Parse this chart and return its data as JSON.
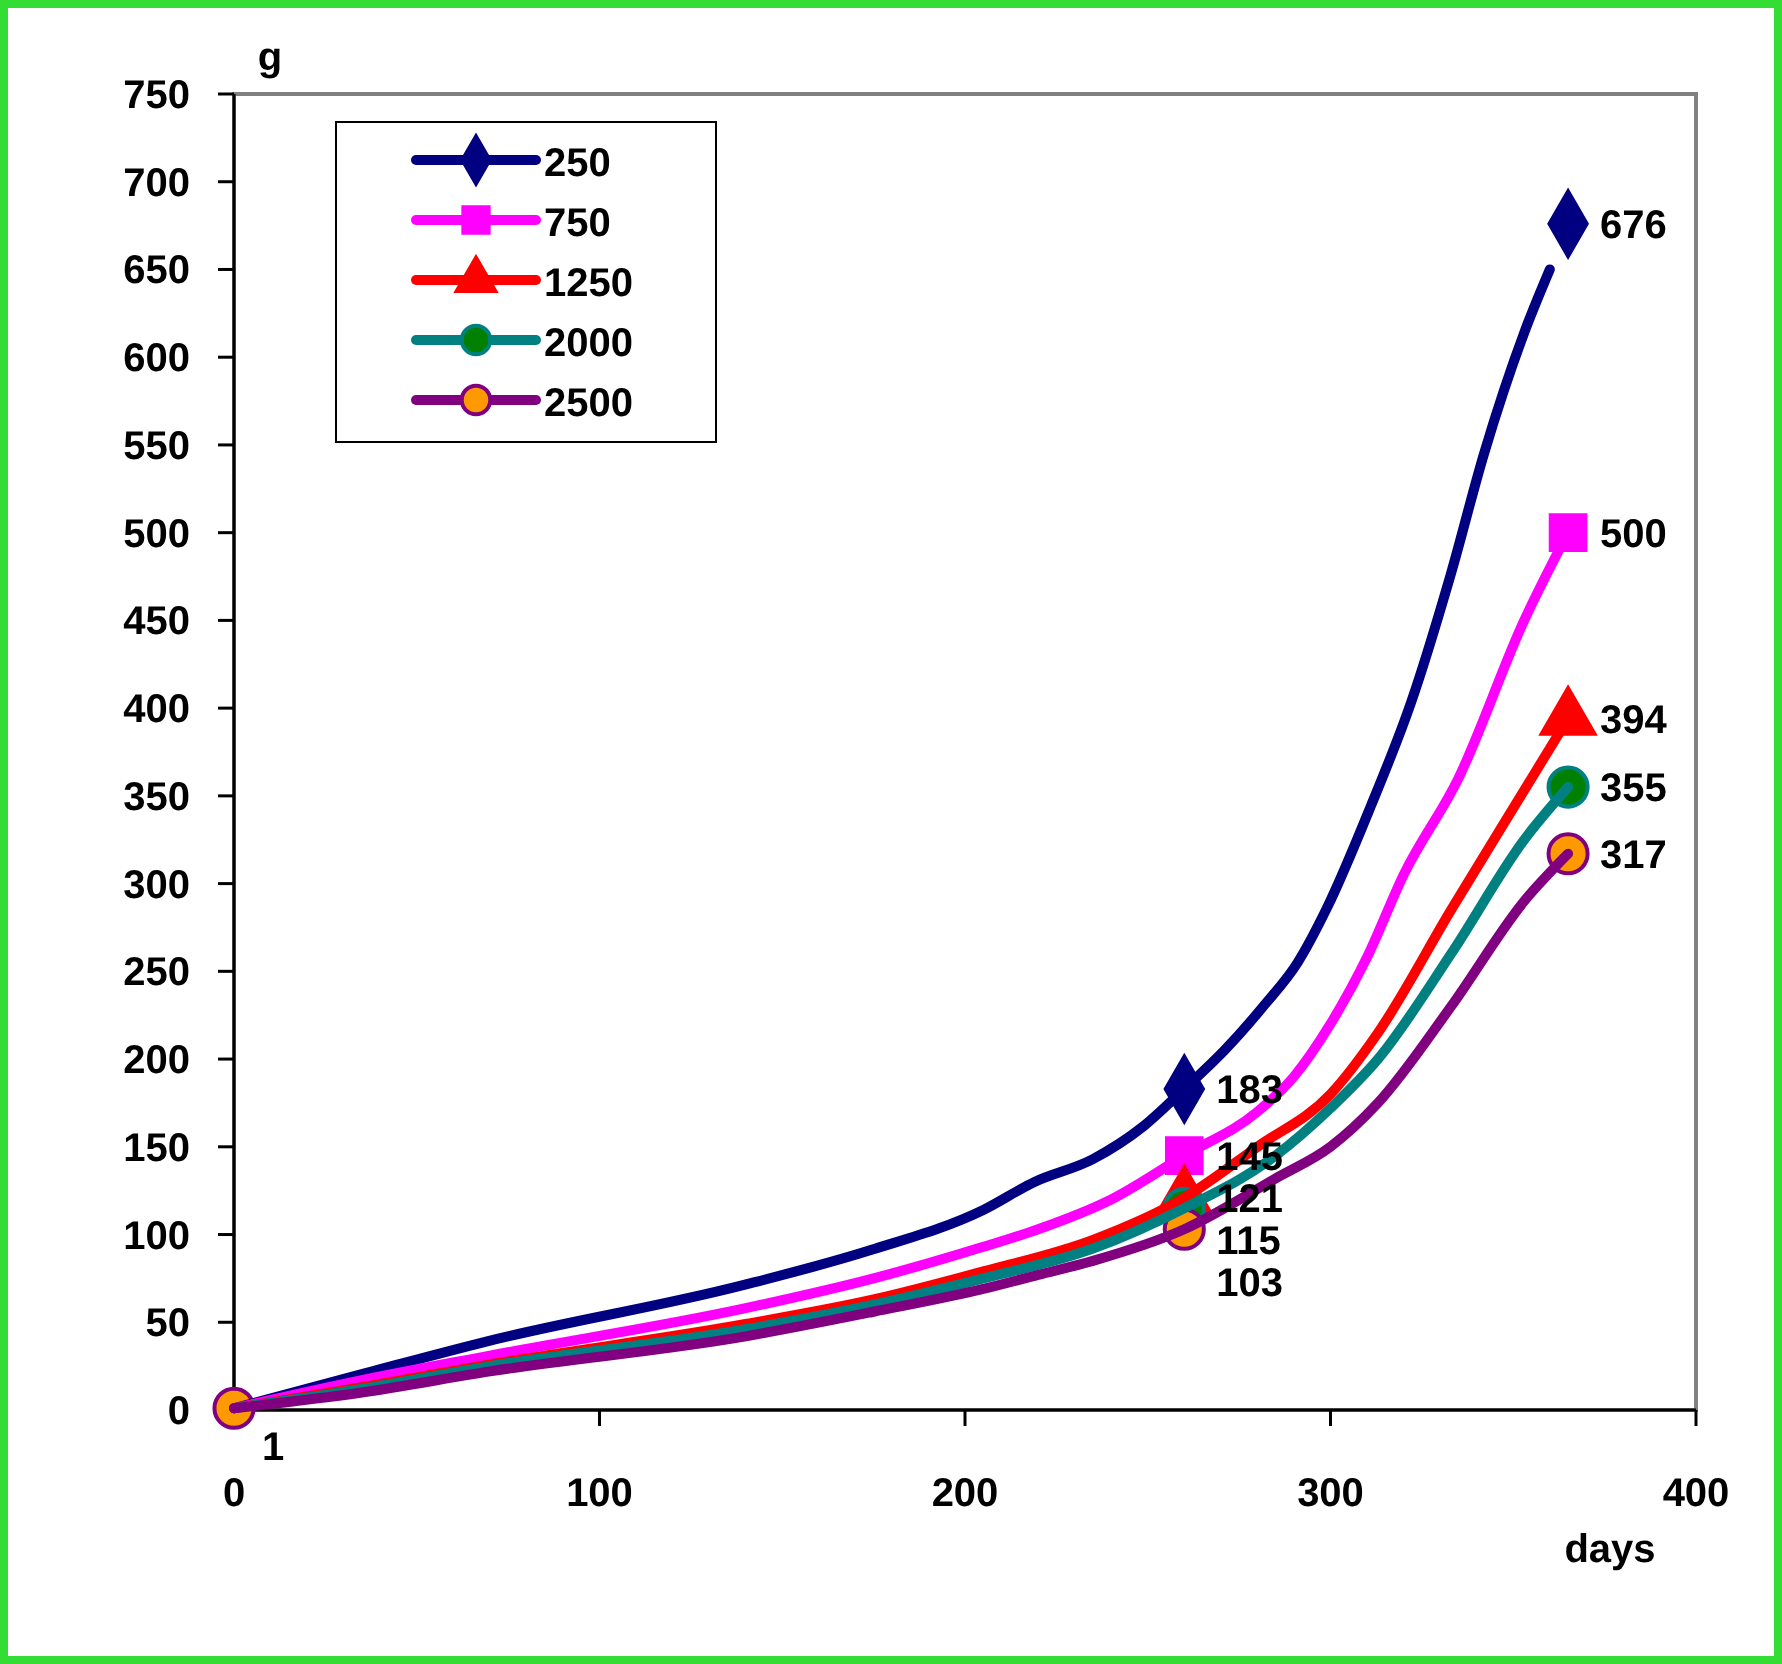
{
  "chart_data": {
    "type": "line",
    "xlabel": "days",
    "ylabel": "g",
    "xlim": [
      0,
      400
    ],
    "xticks": [
      0,
      100,
      200,
      300,
      400
    ],
    "ylim": [
      0,
      750
    ],
    "yticks": [
      0,
      50,
      100,
      150,
      200,
      250,
      300,
      350,
      400,
      450,
      500,
      550,
      600,
      650,
      700,
      750
    ],
    "legend": "top left",
    "series": [
      {
        "name": "250",
        "color": "#000080",
        "x": [
          0,
          36,
          69,
          139,
          174,
          205,
          219,
          235,
          249,
          260,
          271,
          282,
          291,
          299,
          311,
          322,
          333,
          342,
          353,
          360
        ],
        "values": [
          1,
          21,
          39,
          71,
          91,
          114,
          130,
          143,
          162,
          183,
          205,
          231,
          255,
          286,
          344,
          403,
          477,
          545,
          614,
          650
        ]
      },
      {
        "name": "750",
        "color": "#ff00ff",
        "x": [
          0,
          35,
          70,
          140,
          175,
          205,
          220,
          240,
          260,
          280,
          290,
          300,
          310,
          320,
          335,
          353,
          365
        ],
        "values": [
          1,
          17,
          31,
          58,
          75,
          93,
          103,
          120,
          145,
          170,
          190,
          220,
          258,
          305,
          360,
          450,
          500
        ]
      },
      {
        "name": "1250",
        "color": "#ff0000",
        "x": [
          0,
          35,
          70,
          140,
          175,
          205,
          235,
          260,
          280,
          300,
          313,
          333,
          355,
          365
        ],
        "values": [
          1,
          13,
          26,
          49,
          63,
          79,
          97,
          121,
          150,
          180,
          215,
          285,
          360,
          394
        ]
      },
      {
        "name": "2000",
        "color": "#008080",
        "x": [
          0,
          35,
          70,
          140,
          175,
          205,
          235,
          260,
          285,
          300,
          313,
          333,
          353,
          365
        ],
        "values": [
          1,
          12,
          25,
          46,
          60,
          75,
          92,
          115,
          145,
          172,
          200,
          260,
          325,
          355
        ]
      },
      {
        "name": "2500",
        "color": "#800080",
        "x": [
          0,
          35,
          70,
          140,
          175,
          205,
          220,
          235,
          260,
          285,
          300,
          313,
          333,
          353,
          365
        ],
        "values": [
          1,
          10,
          22,
          42,
          56,
          69,
          77,
          85,
          103,
          132,
          150,
          175,
          230,
          290,
          317
        ]
      },
      {
        "type": "scatter",
        "color": "#000080",
        "marker": "diamond",
        "x": [
          260,
          365
        ],
        "values": [
          183,
          676
        ],
        "value_labels": [
          "183",
          "676"
        ]
      },
      {
        "type": "scatter",
        "color": "#ff00ff",
        "marker": "square",
        "x": [
          260,
          365
        ],
        "values": [
          145,
          500
        ],
        "value_labels": [
          "145",
          "500"
        ]
      },
      {
        "type": "scatter",
        "color": "#ff0000",
        "marker": "triangle",
        "x": [
          260,
          365
        ],
        "values": [
          121,
          394
        ],
        "value_labels": [
          "121",
          "394"
        ]
      },
      {
        "type": "scatter",
        "color": "#008000",
        "marker": "circle",
        "x": [
          260,
          365
        ],
        "values": [
          115,
          355
        ],
        "value_labels": [
          "115",
          "355"
        ]
      },
      {
        "type": "scatter",
        "color": "#ff9900",
        "marker": "circle",
        "x": [
          0,
          260,
          365
        ],
        "values": [
          1,
          103,
          317
        ],
        "value_labels": [
          "1",
          "103",
          "317"
        ]
      }
    ]
  }
}
